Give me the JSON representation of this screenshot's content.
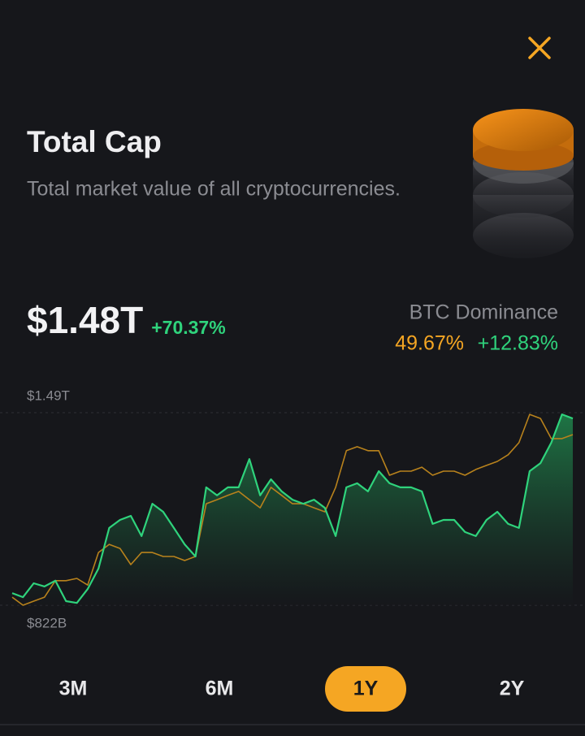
{
  "header": {
    "title": "Total Cap",
    "subtitle": "Total market value of all cryptocurrencies."
  },
  "stats": {
    "value": "$1.48T",
    "change": "+70.37%",
    "dominance_label": "BTC Dominance",
    "dominance_value": "49.67%",
    "dominance_change": "+12.83%"
  },
  "chart_data": {
    "type": "line",
    "series": [
      {
        "color": "#2fd37c",
        "fill": true,
        "values": [
          0.864,
          0.85,
          0.898,
          0.887,
          0.907,
          0.836,
          0.83,
          0.878,
          0.949,
          1.09,
          1.118,
          1.132,
          1.062,
          1.174,
          1.146,
          1.09,
          1.033,
          0.991,
          1.231,
          1.203,
          1.231,
          1.231,
          1.329,
          1.203,
          1.259,
          1.217,
          1.188,
          1.174,
          1.188,
          1.16,
          1.062,
          1.231,
          1.245,
          1.217,
          1.287,
          1.245,
          1.231,
          1.231,
          1.217,
          1.104,
          1.118,
          1.118,
          1.076,
          1.062,
          1.118,
          1.146,
          1.104,
          1.09,
          1.287,
          1.315,
          1.386,
          1.484,
          1.47
        ]
      },
      {
        "color": "#b8821c",
        "fill": false,
        "values": [
          0.85,
          0.822,
          0.836,
          0.85,
          0.907,
          0.907,
          0.915,
          0.892,
          1.005,
          1.033,
          1.019,
          0.963,
          1.005,
          1.005,
          0.991,
          0.991,
          0.977,
          0.991,
          1.174,
          1.188,
          1.203,
          1.217,
          1.188,
          1.16,
          1.231,
          1.203,
          1.174,
          1.174,
          1.16,
          1.146,
          1.231,
          1.358,
          1.372,
          1.358,
          1.358,
          1.273,
          1.287,
          1.287,
          1.301,
          1.273,
          1.287,
          1.287,
          1.273,
          1.293,
          1.307,
          1.321,
          1.344,
          1.386,
          1.484,
          1.47,
          1.4,
          1.4,
          1.414
        ]
      }
    ],
    "ylim": [
      0.822,
      1.49
    ],
    "yticks": [
      {
        "value": 0.822,
        "label": "$822B"
      },
      {
        "value": 1.49,
        "label": "$1.49T"
      }
    ],
    "grid": true
  },
  "ranges": {
    "options": [
      "3M",
      "6M",
      "1Y",
      "2Y"
    ],
    "selected": 2
  }
}
